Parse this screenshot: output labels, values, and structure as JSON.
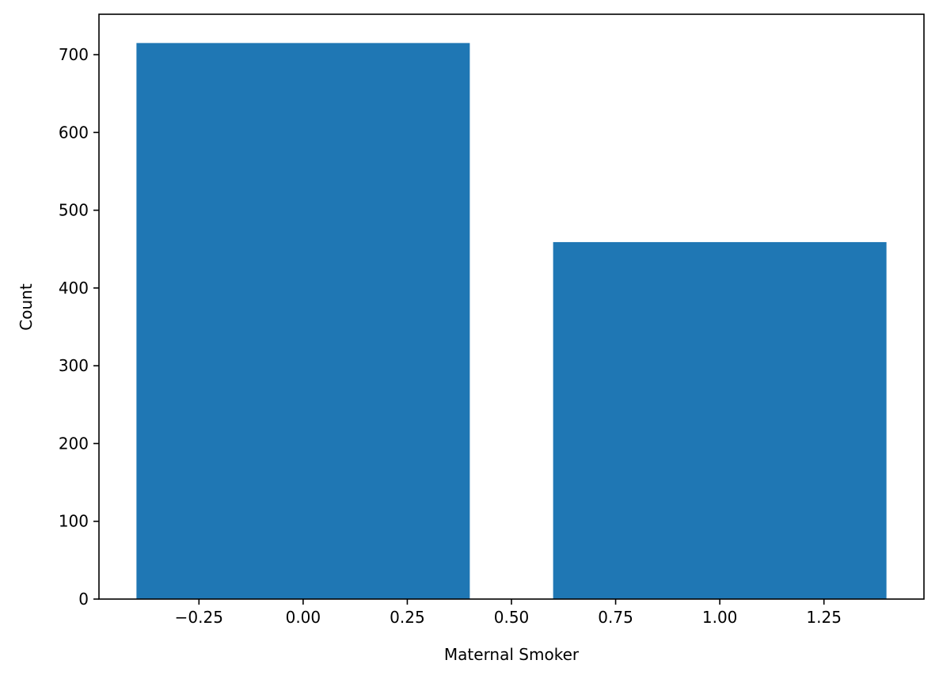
{
  "chart_data": {
    "type": "bar",
    "title": "",
    "xlabel": "Maternal Smoker",
    "ylabel": "Count",
    "x": [
      0,
      1
    ],
    "values": [
      715,
      459
    ],
    "bar_width": 0.8,
    "xlim": [
      -0.49,
      1.49
    ],
    "ylim": [
      0,
      752
    ],
    "xticks": [
      -0.25,
      0.0,
      0.25,
      0.5,
      0.75,
      1.0,
      1.25
    ],
    "xtick_labels": [
      "−0.25",
      "0.00",
      "0.25",
      "0.50",
      "0.75",
      "1.00",
      "1.25"
    ],
    "yticks": [
      0,
      100,
      200,
      300,
      400,
      500,
      600,
      700
    ],
    "ytick_labels": [
      "0",
      "100",
      "200",
      "300",
      "400",
      "500",
      "600",
      "700"
    ],
    "grid": false,
    "colors": {
      "bar": "#1f77b4",
      "axes": "#000000",
      "background": "#ffffff"
    }
  }
}
